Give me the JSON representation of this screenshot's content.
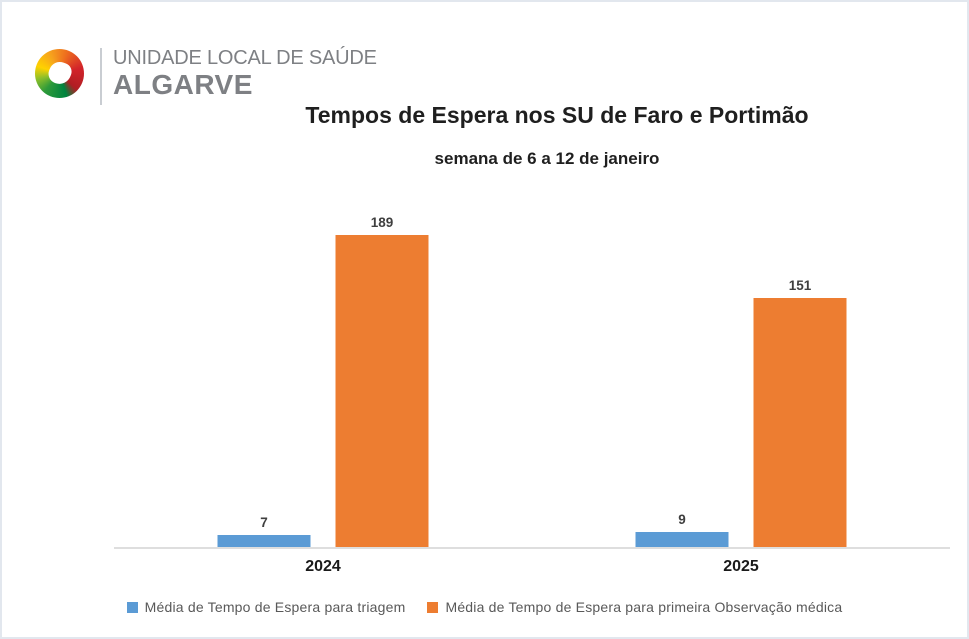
{
  "logo": {
    "line1": "UNIDADE LOCAL DE SAÚDE",
    "line2": "ALGARVE",
    "colors": {
      "red": "#d2232a",
      "orange": "#f6a21d",
      "yellow": "#ffd200",
      "green": "#00833e"
    }
  },
  "chart_data": {
    "type": "bar",
    "title": "Tempos de Espera nos SU de Faro e Portimão",
    "subtitle": "semana de 6 a 12 de janeiro",
    "categories": [
      "2024",
      "2025"
    ],
    "series": [
      {
        "name": "Média de Tempo de Espera para triagem",
        "color": "#5b9bd5",
        "values": [
          7,
          9
        ]
      },
      {
        "name": "Média de Tempo de Espera para primeira Observação médica",
        "color": "#ed7d31",
        "values": [
          189,
          151
        ]
      }
    ],
    "ylim": [
      0,
      200
    ],
    "grid": false,
    "y_axis_visible": false,
    "data_labels": true,
    "data_label_color": "#3f3f3f",
    "axis_line_color": "#dedede",
    "legend_position": "bottom",
    "legend_text_color": "#595959"
  }
}
